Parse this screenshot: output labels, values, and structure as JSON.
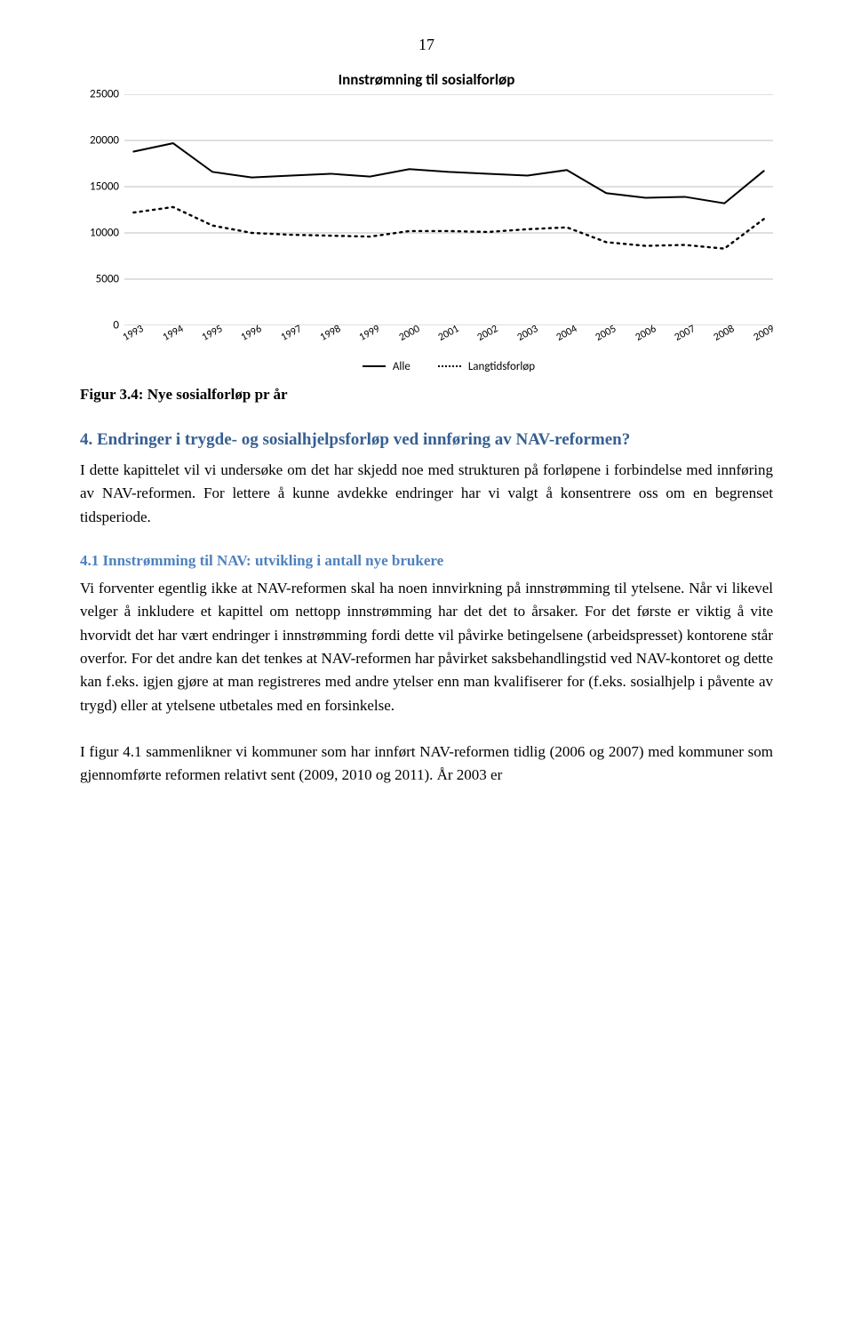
{
  "page_number": "17",
  "chart": {
    "type": "line",
    "title": "Innstrømning til sosialforløp",
    "y_ticks": [
      0,
      5000,
      10000,
      15000,
      20000,
      25000
    ],
    "ylim": [
      0,
      25000
    ],
    "x_labels": [
      "1993",
      "1994",
      "1995",
      "1996",
      "1997",
      "1998",
      "1999",
      "2000",
      "2001",
      "2002",
      "2003",
      "2004",
      "2005",
      "2006",
      "2007",
      "2008",
      "2009"
    ],
    "series": [
      {
        "name": "Alle",
        "style": "solid",
        "color": "#000000",
        "width": 2,
        "values": [
          18800,
          19700,
          16600,
          16000,
          16200,
          16400,
          16100,
          16900,
          16600,
          16400,
          16200,
          16800,
          14300,
          13800,
          13900,
          13200,
          16700
        ]
      },
      {
        "name": "Langtidsforløp",
        "style": "dotted",
        "color": "#000000",
        "width": 2,
        "values": [
          12200,
          12800,
          10800,
          10000,
          9800,
          9700,
          9600,
          10200,
          10200,
          10100,
          10400,
          10600,
          9000,
          8600,
          8700,
          8300,
          11500
        ]
      }
    ],
    "gridline_color": "#bfbfbf",
    "axis_color": "#808080",
    "background_color": "#ffffff",
    "font_family": "Calibri",
    "label_fontsize": 13,
    "legend_position": "bottom-center"
  },
  "figure_caption": "Figur 3.4: Nye sosialforløp pr år",
  "section4": {
    "heading": "4. Endringer i trygde- og sosialhjelpsforløp ved innføring av NAV-reformen?",
    "body": "I dette kapittelet vil vi undersøke om det har skjedd noe med strukturen på forløpene i forbindelse med innføring av NAV-reformen. For lettere å kunne avdekke endringer har vi valgt å konsentrere oss om en begrenset tidsperiode."
  },
  "section41": {
    "heading": "4.1 Innstrømming til NAV: utvikling i antall nye brukere",
    "body": "Vi forventer egentlig ikke at NAV-reformen skal ha noen innvirkning på innstrømming til ytelsene. Når vi likevel velger å inkludere et kapittel om nettopp innstrømming har det det to årsaker. For det første er viktig å vite hvorvidt det har vært endringer i innstrømming fordi dette vil påvirke betingelsene (arbeidspresset) kontorene står overfor. For det andre kan det tenkes at NAV-reformen har påvirket saksbehandlingstid ved NAV-kontoret og dette kan f.eks. igjen gjøre at man registreres med andre ytelser enn man kvalifiserer for (f.eks. sosialhjelp i påvente av trygd) eller at ytelsene utbetales med en forsinkelse."
  },
  "closing_paragraph": "I figur 4.1 sammenlikner vi kommuner som har innført NAV-reformen tidlig (2006 og 2007) med kommuner som gjennomførte reformen relativt sent (2009, 2010 og 2011). År 2003 er"
}
